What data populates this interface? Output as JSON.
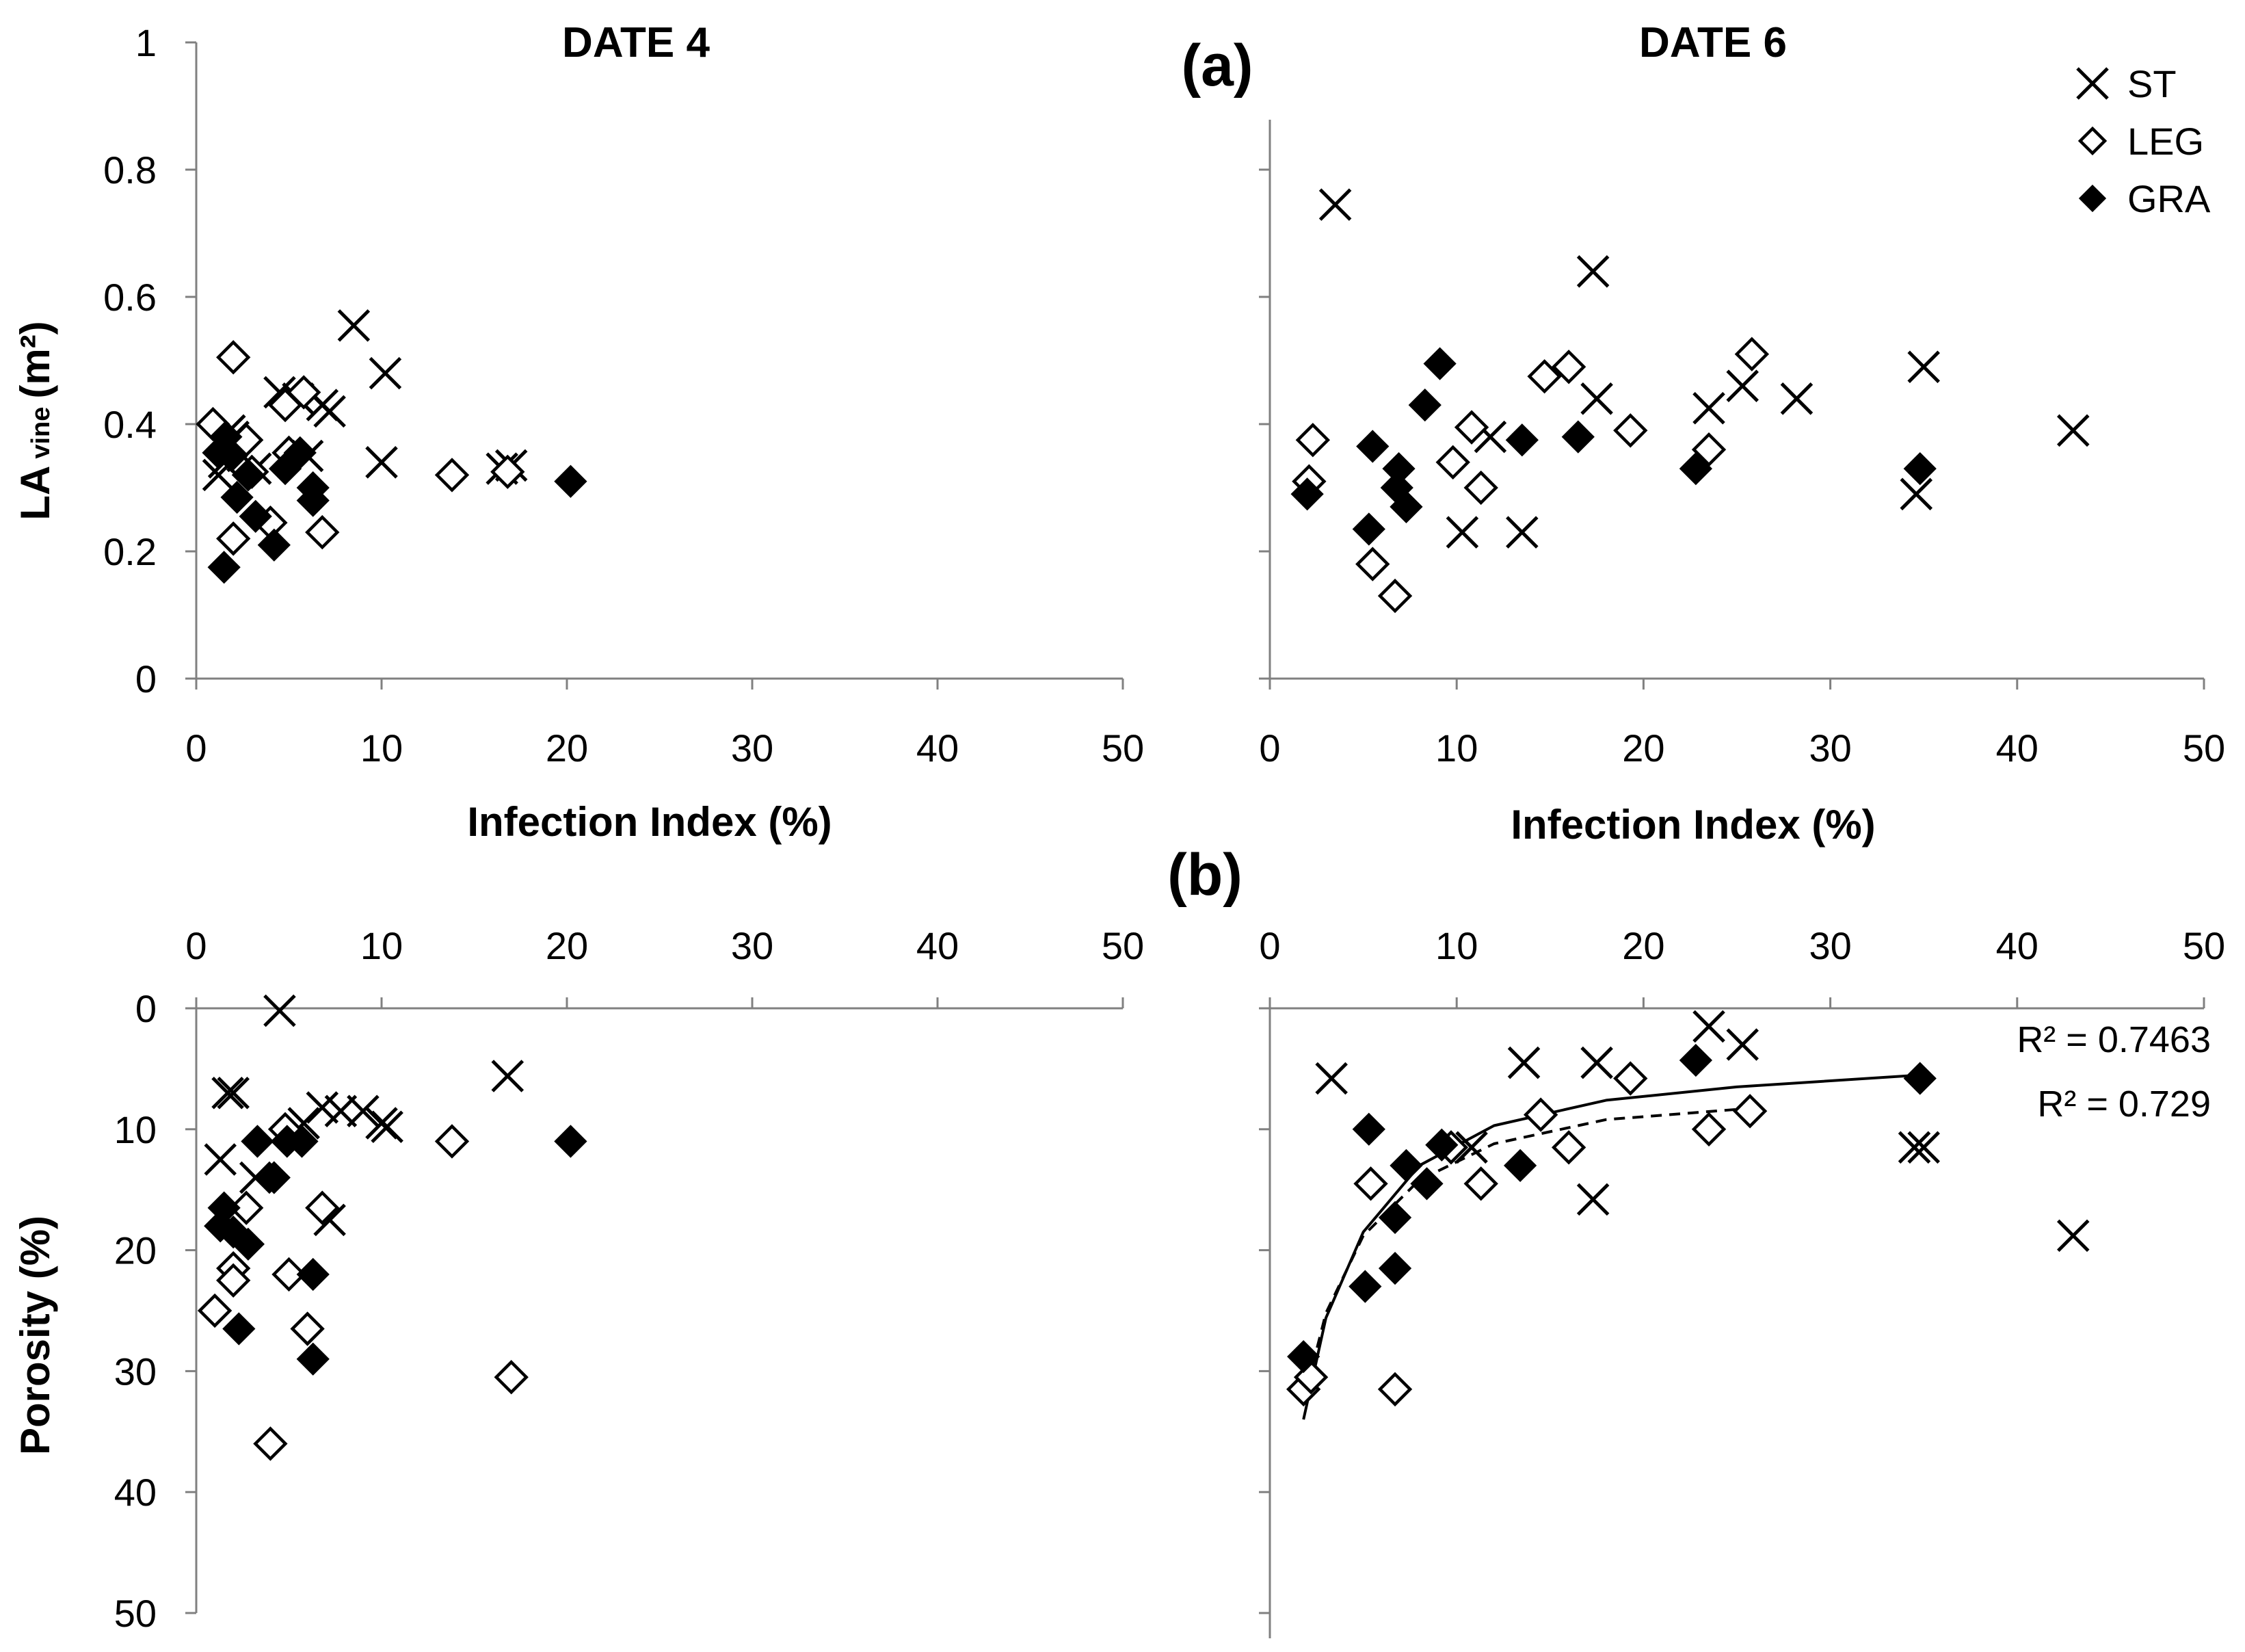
{
  "labels": {
    "date_left": "DATE 4",
    "date_right": "DATE 6",
    "panel_a": "(a)",
    "panel_b": "(b)",
    "y_label_a": "LA",
    "y_label_a_sub": "vine",
    "y_label_a_unit": "(m²)",
    "y_label_b": "Porosity (%)",
    "x_label": "Infection Index (%)",
    "r2_solid": "R² = 0.7463",
    "r2_dashed": "R² = 0.729"
  },
  "legend": [
    {
      "name": "ST",
      "marker": "x"
    },
    {
      "name": "LEG",
      "marker": "open-diamond"
    },
    {
      "name": "GRA",
      "marker": "filled-diamond"
    }
  ],
  "chart_data": [
    {
      "panel": "a-left",
      "type": "scatter",
      "title": "DATE 4",
      "xlabel": "Infection Index (%)",
      "ylabel": "LA vine (m²)",
      "xlim": [
        0,
        50
      ],
      "ylim": [
        0,
        1
      ],
      "xticks": [
        "0",
        "10",
        "20",
        "30",
        "40",
        "50"
      ],
      "yticks": [
        "0",
        "0.2",
        "0.4",
        "0.6",
        "0.8",
        "1"
      ],
      "series": [
        {
          "name": "ST",
          "points": [
            [
              1.2,
              0.32
            ],
            [
              1.5,
              0.34
            ],
            [
              1.8,
              0.39
            ],
            [
              2.0,
              0.38
            ],
            [
              2.5,
              0.35
            ],
            [
              3.2,
              0.33
            ],
            [
              4.5,
              0.45
            ],
            [
              5.5,
              0.44
            ],
            [
              6.0,
              0.35
            ],
            [
              6.8,
              0.43
            ],
            [
              7.2,
              0.42
            ],
            [
              8.5,
              0.555
            ],
            [
              10.0,
              0.34
            ],
            [
              10.2,
              0.48
            ],
            [
              16.5,
              0.33
            ],
            [
              17.0,
              0.335
            ]
          ]
        },
        {
          "name": "LEG",
          "points": [
            [
              0.9,
              0.4
            ],
            [
              2.0,
              0.505
            ],
            [
              2.0,
              0.22
            ],
            [
              2.7,
              0.375
            ],
            [
              3.0,
              0.325
            ],
            [
              4.0,
              0.245
            ],
            [
              4.8,
              0.43
            ],
            [
              5.0,
              0.355
            ],
            [
              5.8,
              0.45
            ],
            [
              6.8,
              0.23
            ],
            [
              13.8,
              0.32
            ],
            [
              16.8,
              0.325
            ]
          ]
        },
        {
          "name": "GRA",
          "points": [
            [
              1.2,
              0.355
            ],
            [
              1.5,
              0.175
            ],
            [
              1.6,
              0.38
            ],
            [
              1.9,
              0.35
            ],
            [
              2.2,
              0.285
            ],
            [
              2.8,
              0.32
            ],
            [
              3.2,
              0.255
            ],
            [
              4.2,
              0.21
            ],
            [
              4.8,
              0.33
            ],
            [
              5.6,
              0.355
            ],
            [
              6.3,
              0.28
            ],
            [
              6.3,
              0.3
            ],
            [
              20.2,
              0.31
            ]
          ]
        }
      ]
    },
    {
      "panel": "a-right",
      "type": "scatter",
      "title": "DATE 6",
      "xlabel": "Infection Index (%)",
      "xlim": [
        0,
        50
      ],
      "ylim": [
        0,
        1
      ],
      "xticks": [
        "0",
        "10",
        "20",
        "30",
        "40",
        "50"
      ],
      "series": [
        {
          "name": "ST",
          "points": [
            [
              3.5,
              0.745
            ],
            [
              10.3,
              0.23
            ],
            [
              11.8,
              0.38
            ],
            [
              13.5,
              0.23
            ],
            [
              17.3,
              0.64
            ],
            [
              17.5,
              0.44
            ],
            [
              23.5,
              0.425
            ],
            [
              25.3,
              0.46
            ],
            [
              28.2,
              0.44
            ],
            [
              34.6,
              0.29
            ],
            [
              35.0,
              0.49
            ],
            [
              43.0,
              0.39
            ]
          ]
        },
        {
          "name": "LEG",
          "points": [
            [
              2.1,
              0.31
            ],
            [
              2.3,
              0.375
            ],
            [
              5.5,
              0.18
            ],
            [
              6.7,
              0.13
            ],
            [
              9.8,
              0.34
            ],
            [
              10.8,
              0.395
            ],
            [
              11.3,
              0.3
            ],
            [
              14.7,
              0.475
            ],
            [
              16.0,
              0.49
            ],
            [
              19.3,
              0.39
            ],
            [
              23.5,
              0.36
            ],
            [
              25.8,
              0.51
            ]
          ]
        },
        {
          "name": "GRA",
          "points": [
            [
              2.0,
              0.29
            ],
            [
              5.3,
              0.235
            ],
            [
              5.5,
              0.365
            ],
            [
              6.8,
              0.3
            ],
            [
              6.9,
              0.33
            ],
            [
              7.3,
              0.27
            ],
            [
              8.3,
              0.43
            ],
            [
              9.1,
              0.495
            ],
            [
              13.5,
              0.375
            ],
            [
              16.5,
              0.38
            ],
            [
              22.8,
              0.33
            ],
            [
              34.8,
              0.33
            ]
          ]
        }
      ]
    },
    {
      "panel": "b-left",
      "type": "scatter",
      "ylabel": "Porosity (%)",
      "xlim": [
        0,
        50
      ],
      "ylim": [
        0,
        50
      ],
      "y_reversed": true,
      "x_axis_position": "top",
      "xticks": [
        "0",
        "10",
        "20",
        "30",
        "40",
        "50"
      ],
      "yticks": [
        "0",
        "10",
        "20",
        "30",
        "40",
        "50"
      ],
      "series": [
        {
          "name": "ST",
          "points": [
            [
              1.3,
              12.5
            ],
            [
              1.7,
              7.0
            ],
            [
              2.0,
              7.0
            ],
            [
              3.2,
              14.0
            ],
            [
              4.5,
              0.2
            ],
            [
              5.8,
              9.5
            ],
            [
              6.8,
              8.2
            ],
            [
              7.2,
              17.5
            ],
            [
              7.8,
              8.5
            ],
            [
              9.0,
              8.5
            ],
            [
              10.0,
              9.5
            ],
            [
              10.3,
              9.8
            ],
            [
              16.8,
              5.6
            ]
          ]
        },
        {
          "name": "LEG",
          "points": [
            [
              1.0,
              25.0
            ],
            [
              2.0,
              21.5
            ],
            [
              2.0,
              22.5
            ],
            [
              2.7,
              16.5
            ],
            [
              4.0,
              36.0
            ],
            [
              4.8,
              10.0
            ],
            [
              5.0,
              22.0
            ],
            [
              6.0,
              26.5
            ],
            [
              6.8,
              16.5
            ],
            [
              13.8,
              11.0
            ],
            [
              17.0,
              30.5
            ]
          ]
        },
        {
          "name": "GRA",
          "points": [
            [
              1.3,
              18.0
            ],
            [
              1.5,
              16.5
            ],
            [
              2.0,
              18.5
            ],
            [
              2.3,
              26.5
            ],
            [
              2.8,
              19.5
            ],
            [
              3.3,
              11.0
            ],
            [
              4.2,
              14.0
            ],
            [
              4.9,
              11.0
            ],
            [
              5.7,
              11.0
            ],
            [
              6.3,
              22.0
            ],
            [
              6.3,
              29.0
            ],
            [
              20.2,
              11.0
            ]
          ]
        }
      ]
    },
    {
      "panel": "b-right",
      "type": "scatter",
      "xlim": [
        0,
        50
      ],
      "ylim": [
        0,
        50
      ],
      "y_reversed": true,
      "x_axis_position": "top",
      "xticks": [
        "0",
        "10",
        "20",
        "30",
        "40",
        "50"
      ],
      "series": [
        {
          "name": "ST",
          "points": [
            [
              3.3,
              5.8
            ],
            [
              10.8,
              11.5
            ],
            [
              13.6,
              4.5
            ],
            [
              17.3,
              15.8
            ],
            [
              17.5,
              4.5
            ],
            [
              23.5,
              1.5
            ],
            [
              25.3,
              3.0
            ],
            [
              34.5,
              11.5
            ],
            [
              35.0,
              11.5
            ],
            [
              43.0,
              18.8
            ]
          ]
        },
        {
          "name": "LEG",
          "points": [
            [
              1.8,
              31.5
            ],
            [
              2.2,
              30.5
            ],
            [
              5.4,
              14.5
            ],
            [
              6.7,
              31.5
            ],
            [
              9.7,
              11.5
            ],
            [
              11.3,
              14.5
            ],
            [
              14.5,
              8.8
            ],
            [
              16.0,
              11.5
            ],
            [
              19.3,
              5.8
            ],
            [
              23.5,
              10.0
            ],
            [
              25.7,
              8.5
            ]
          ]
        },
        {
          "name": "GRA",
          "points": [
            [
              1.8,
              28.8
            ],
            [
              5.1,
              23.0
            ],
            [
              5.3,
              10.0
            ],
            [
              6.7,
              21.5
            ],
            [
              6.7,
              17.3
            ],
            [
              7.3,
              13.0
            ],
            [
              8.4,
              14.5
            ],
            [
              9.2,
              11.3
            ],
            [
              13.4,
              13.0
            ],
            [
              22.8,
              4.3
            ],
            [
              34.8,
              5.8
            ]
          ]
        }
      ],
      "fits": [
        {
          "style": "solid",
          "r2": 0.7463,
          "x_range": [
            1.8,
            35
          ],
          "points": [
            [
              1.8,
              34.0
            ],
            [
              3,
              25.6
            ],
            [
              5,
              18.5
            ],
            [
              8,
              13.0
            ],
            [
              12,
              9.7
            ],
            [
              18,
              7.6
            ],
            [
              25,
              6.5
            ],
            [
              35,
              5.5
            ]
          ]
        },
        {
          "style": "dashed",
          "r2": 0.729,
          "x_range": [
            1.8,
            25.5
          ],
          "points": [
            [
              1.8,
              32.5
            ],
            [
              3,
              25.2
            ],
            [
              5,
              18.8
            ],
            [
              8,
              14.2
            ],
            [
              12,
              11.2
            ],
            [
              18,
              9.2
            ],
            [
              25.5,
              8.3
            ]
          ]
        }
      ]
    }
  ]
}
